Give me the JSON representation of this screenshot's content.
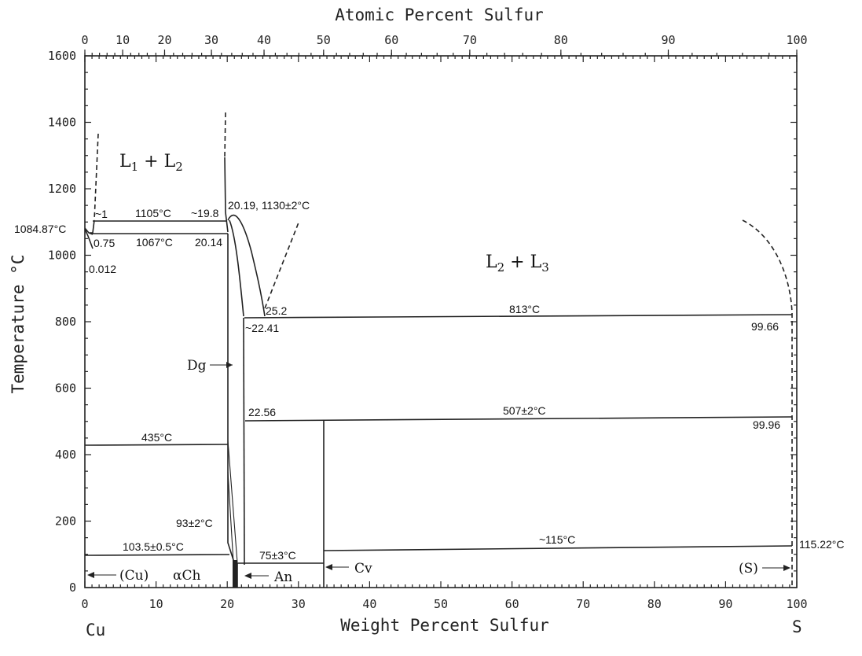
{
  "chart_data": {
    "type": "phase_diagram",
    "title": "",
    "xlabel": "Weight Percent Sulfur",
    "x2label": "Atomic Percent Sulfur",
    "ylabel": "Temperature °C",
    "xlim": [
      0,
      100
    ],
    "ylim": [
      0,
      1600
    ],
    "x_ticks": [
      "0",
      "10",
      "20",
      "30",
      "40",
      "50",
      "60",
      "70",
      "80",
      "90",
      "100"
    ],
    "x2_ticks": [
      "0",
      "10",
      "20",
      "30",
      "40",
      "50",
      "60",
      "70",
      "80",
      "90",
      "100"
    ],
    "y_ticks": [
      "0",
      "200",
      "400",
      "600",
      "800",
      "1000",
      "1200",
      "1400",
      "1600"
    ],
    "x_end_labels": {
      "left": "Cu",
      "right": "S"
    },
    "phase_regions": {
      "l1_l2": {
        "main": "L",
        "s1": "1",
        "plus": " + ",
        "main2": "L",
        "s2": "2"
      },
      "l2_l3": {
        "main": "L",
        "s1": "2",
        "plus": " + ",
        "main2": "L",
        "s2": "3"
      },
      "dg": "Dg",
      "cu": "(Cu)",
      "alpha_ch": "αCh",
      "an": "An",
      "cv": "Cv",
      "s": "(S)"
    },
    "annotations": {
      "cu_melt": "1084.87°C",
      "a_0_75": "0.75",
      "a_0_012": "0.012",
      "a_1": "~1",
      "t_1105": "1105°C",
      "a_19_8": "~19.8",
      "t_1067": "1067°C",
      "a_20_14": "20.14",
      "a_20_19": "20.19, 1130±2°C",
      "a_25_2": "25.2",
      "a_22_41": "~22.41",
      "t_813": "813°C",
      "a_99_66": "99.66",
      "a_22_56": "22.56",
      "t_507": "507±2°C",
      "a_99_96": "99.96",
      "t_435": "435°C",
      "t_93": "93±2°C",
      "t_103": "103.5±0.5°C",
      "t_75": "75±3°C",
      "t_115": "~115°C",
      "t_115_22": "115.22°C"
    },
    "isotherms": [
      {
        "label": "1105°C",
        "x_from": 1,
        "x_to": 19.8,
        "t": 1105
      },
      {
        "label": "1067°C",
        "x_from": 0.75,
        "x_to": 20.14,
        "t": 1067
      },
      {
        "label": "813°C",
        "x_from": 22.41,
        "x_to": 99.66,
        "t": 813
      },
      {
        "label": "507±2°C",
        "x_from": 22.56,
        "x_to": 99.96,
        "t": 507
      },
      {
        "label": "435°C",
        "x_from": 0,
        "x_to": 20,
        "t": 435
      },
      {
        "label": "103.5±0.5°C",
        "x_from": 0,
        "x_to": 20.4,
        "t": 103.5
      },
      {
        "label": "75±3°C",
        "x_from": 21.3,
        "x_to": 33.5,
        "t": 75
      },
      {
        "label": "~115°C",
        "x_from": 33.5,
        "x_to": 100,
        "t": 115
      }
    ],
    "grid": false
  }
}
